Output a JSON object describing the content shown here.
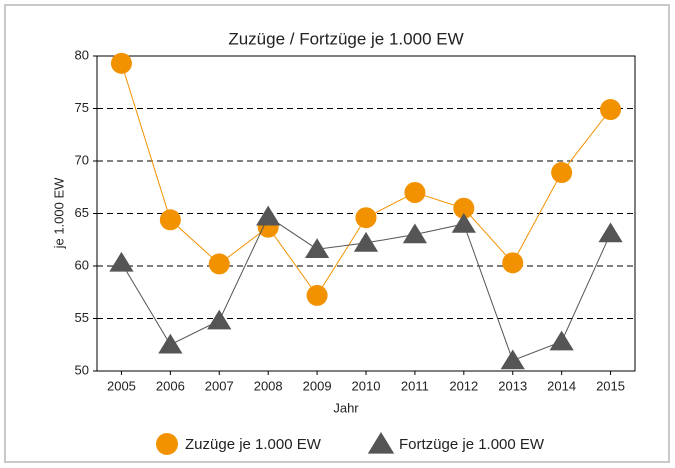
{
  "chart_data": {
    "type": "line",
    "title": "Zuzüge / Fortzüge je 1.000 EW",
    "x_label": "Jahr",
    "y_label": "je 1.000 EW",
    "categories": [
      "2005",
      "2006",
      "2007",
      "2008",
      "2009",
      "2010",
      "2011",
      "2012",
      "2013",
      "2014",
      "2015"
    ],
    "series": [
      {
        "name": "Zuzüge je 1.000 EW",
        "color": "#f39200",
        "marker": "circle",
        "values": [
          79.3,
          64.4,
          60.2,
          63.7,
          57.2,
          64.6,
          67.0,
          65.5,
          60.3,
          68.9,
          74.9
        ]
      },
      {
        "name": "Fortzüge je 1.000 EW",
        "color": "#555555",
        "marker": "triangle",
        "values": [
          60.3,
          52.5,
          54.8,
          64.7,
          61.6,
          62.2,
          63.0,
          64.0,
          51.0,
          52.8,
          63.1
        ]
      }
    ],
    "ylim": [
      50,
      80
    ],
    "yticks": [
      50,
      55,
      60,
      65,
      70,
      75,
      80
    ],
    "grid": true
  }
}
